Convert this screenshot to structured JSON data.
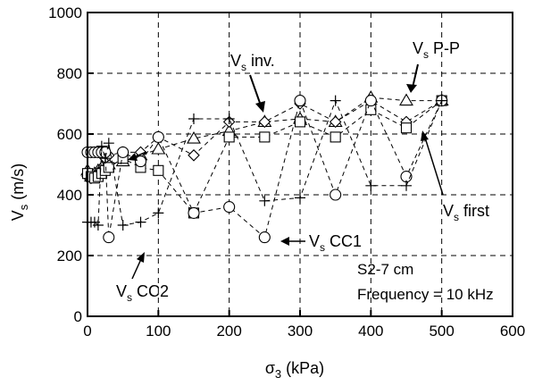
{
  "chart_data": {
    "type": "scatter",
    "xlabel_symbol": "σ",
    "xlabel_sub": "3",
    "xlabel_unit": " (kPa)",
    "ylabel_symbol": "V",
    "ylabel_sub": "s",
    "ylabel_unit": " (m/s)",
    "xlim": [
      0,
      600
    ],
    "ylim": [
      0,
      1000
    ],
    "xticks": [
      0,
      100,
      200,
      300,
      400,
      500,
      600
    ],
    "yticks": [
      0,
      200,
      400,
      600,
      800,
      1000
    ],
    "xgrid": [
      100,
      200,
      300,
      400,
      500
    ],
    "ygrid": [
      200,
      400,
      600,
      800
    ],
    "grid": true,
    "series": [
      {
        "name_main": "V",
        "name_sub": "s",
        "name_rest": " P-P",
        "marker": "triangle",
        "x": [
          0,
          5,
          10,
          15,
          20,
          25,
          30,
          50,
          75,
          100,
          150,
          200,
          250,
          300,
          350,
          400,
          450,
          500
        ],
        "y": [
          480,
          460,
          470,
          480,
          490,
          490,
          500,
          510,
          530,
          550,
          585,
          610,
          640,
          650,
          640,
          720,
          710,
          710
        ]
      },
      {
        "name_main": "V",
        "name_sub": "s",
        "name_rest": " inv.",
        "marker": "diamond",
        "x": [
          0,
          5,
          10,
          15,
          20,
          25,
          30,
          50,
          75,
          100,
          150,
          200,
          250,
          300,
          350,
          400,
          450,
          500
        ],
        "y": [
          460,
          455,
          460,
          470,
          480,
          520,
          530,
          540,
          540,
          590,
          530,
          640,
          640,
          700,
          640,
          710,
          640,
          710
        ]
      },
      {
        "name_main": "V",
        "name_sub": "s",
        "name_rest": " first",
        "marker": "square",
        "x": [
          0,
          5,
          10,
          15,
          20,
          25,
          30,
          50,
          75,
          100,
          150,
          200,
          250,
          300,
          350,
          400,
          450,
          500
        ],
        "y": [
          470,
          460,
          455,
          460,
          470,
          480,
          490,
          520,
          490,
          480,
          340,
          590,
          590,
          640,
          590,
          680,
          620,
          710
        ]
      },
      {
        "name_main": "V",
        "name_sub": "s",
        "name_rest": " CC1",
        "marker": "circle",
        "x": [
          0,
          5,
          10,
          15,
          20,
          25,
          30,
          50,
          75,
          100,
          150,
          200,
          250,
          300,
          350,
          400,
          450,
          500
        ],
        "y": [
          540,
          540,
          540,
          540,
          540,
          540,
          260,
          540,
          510,
          590,
          340,
          360,
          260,
          710,
          400,
          710,
          460,
          710
        ]
      },
      {
        "name_main": "V",
        "name_sub": "s",
        "name_rest": " CC2",
        "marker": "plus",
        "x": [
          0,
          5,
          10,
          15,
          20,
          25,
          30,
          50,
          75,
          100,
          150,
          200,
          250,
          300,
          350,
          400,
          450,
          500
        ],
        "y": [
          310,
          310,
          310,
          300,
          560,
          520,
          570,
          300,
          310,
          340,
          650,
          650,
          380,
          390,
          710,
          430,
          430,
          710
        ]
      }
    ],
    "annotations": {
      "sample_line": "S2-7 cm",
      "frequency_line": "Frequency = 10 kHz"
    }
  }
}
